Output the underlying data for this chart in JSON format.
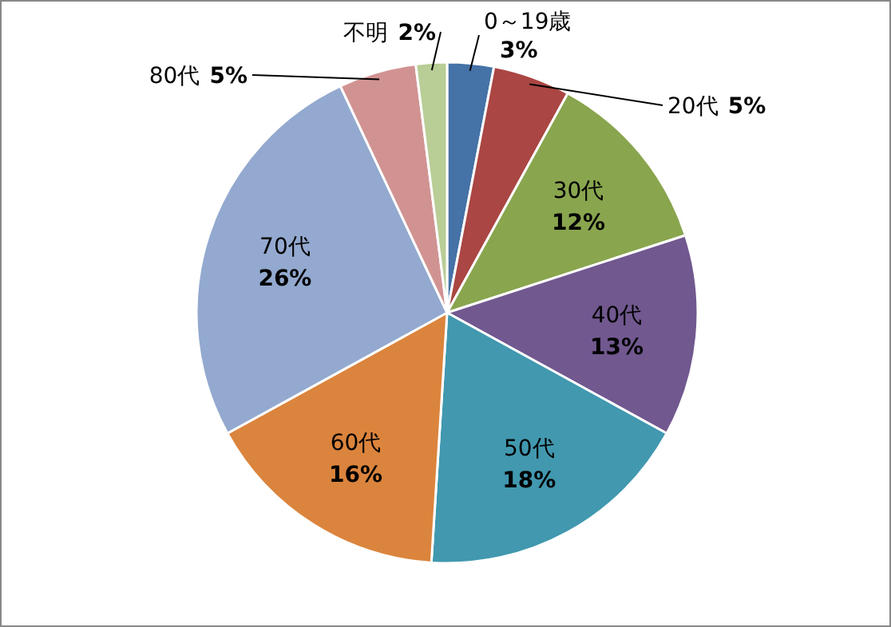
{
  "chart_data": {
    "type": "pie",
    "categories": [
      "0～19歳",
      "20代",
      "30代",
      "40代",
      "50代",
      "60代",
      "70代",
      "80代",
      "不明"
    ],
    "values": [
      3,
      5,
      12,
      13,
      18,
      16,
      26,
      5,
      2
    ],
    "value_labels": [
      "3%",
      "5%",
      "12%",
      "13%",
      "18%",
      "16%",
      "26%",
      "5%",
      "2%"
    ],
    "colors": [
      "#4572a7",
      "#aa4643",
      "#89a54e",
      "#71588f",
      "#4198af",
      "#db843d",
      "#93a9cf",
      "#d19392",
      "#b9cd96"
    ],
    "legend": false
  }
}
